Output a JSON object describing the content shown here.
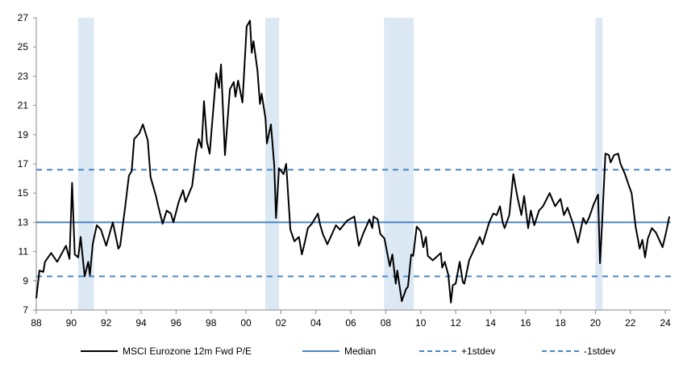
{
  "chart_data": {
    "type": "line",
    "title": "",
    "xlabel": "",
    "ylabel": "",
    "xlim": [
      1988,
      2024.3
    ],
    "ylim": [
      7,
      27
    ],
    "yticks": [
      7,
      9,
      11,
      13,
      15,
      17,
      19,
      21,
      23,
      25,
      27
    ],
    "xticks": [
      1988,
      1990,
      1992,
      1994,
      1996,
      1998,
      2000,
      2002,
      2004,
      2006,
      2008,
      2010,
      2012,
      2014,
      2016,
      2018,
      2020,
      2022,
      2024
    ],
    "xtick_labels": [
      "88",
      "90",
      "92",
      "94",
      "96",
      "98",
      "00",
      "02",
      "04",
      "06",
      "08",
      "10",
      "12",
      "14",
      "16",
      "18",
      "20",
      "22",
      "24"
    ],
    "grid": false,
    "legend_position": "bottom",
    "shaded_periods": [
      [
        1990.4,
        1991.3
      ],
      [
        2001.1,
        2001.9
      ],
      [
        2007.9,
        2009.6
      ],
      [
        2020.0,
        2020.4
      ]
    ],
    "reference_lines": [
      {
        "name": "Median",
        "value": 13.0,
        "style": "solid",
        "color": "#4a86c5"
      },
      {
        "name": "+1stdev",
        "value": 16.6,
        "style": "dashed",
        "color": "#4a86c5"
      },
      {
        "name": "-1stdev",
        "value": 9.3,
        "style": "dashed",
        "color": "#4a86c5"
      }
    ],
    "series": [
      {
        "name": "MSCI Eurozone 12m Fwd P/E",
        "color": "#000000",
        "x": [
          1988.0,
          1988.18,
          1988.4,
          1988.5,
          1988.85,
          1989.2,
          1989.7,
          1989.9,
          1990.05,
          1990.2,
          1990.4,
          1990.54,
          1990.77,
          1990.97,
          1991.07,
          1991.23,
          1991.46,
          1991.7,
          1992.0,
          1992.38,
          1992.7,
          1992.8,
          1993.08,
          1993.3,
          1993.46,
          1993.6,
          1993.9,
          1994.1,
          1994.38,
          1994.54,
          1994.85,
          1995.0,
          1995.23,
          1995.46,
          1995.7,
          1995.85,
          1996.15,
          1996.4,
          1996.54,
          1996.92,
          1997.15,
          1997.3,
          1997.46,
          1997.6,
          1997.77,
          1997.92,
          1998.3,
          1998.46,
          1998.57,
          1998.8,
          1999.08,
          1999.3,
          1999.4,
          1999.55,
          1999.8,
          2000.04,
          2000.23,
          2000.33,
          2000.43,
          2000.66,
          2000.8,
          2000.9,
          2001.12,
          2001.2,
          2001.43,
          2001.62,
          2001.72,
          2001.89,
          2002.15,
          2002.3,
          2002.54,
          2002.77,
          2003.03,
          2003.2,
          2003.38,
          2003.54,
          2003.77,
          2004.12,
          2004.23,
          2004.4,
          2004.66,
          2005.15,
          2005.38,
          2005.77,
          2006.2,
          2006.46,
          2006.7,
          2007.07,
          2007.23,
          2007.3,
          2007.54,
          2007.69,
          2007.92,
          2008.23,
          2008.38,
          2008.57,
          2008.66,
          2008.92,
          2009.15,
          2009.27,
          2009.46,
          2009.57,
          2009.77,
          2010.0,
          2010.15,
          2010.3,
          2010.41,
          2010.69,
          2011.15,
          2011.23,
          2011.38,
          2011.58,
          2011.73,
          2011.84,
          2012.0,
          2012.23,
          2012.41,
          2012.5,
          2012.77,
          2013.0,
          2013.38,
          2013.54,
          2013.77,
          2013.92,
          2014.15,
          2014.35,
          2014.54,
          2014.69,
          2014.8,
          2015.07,
          2015.3,
          2015.54,
          2015.76,
          2015.92,
          2016.15,
          2016.3,
          2016.5,
          2016.77,
          2017.0,
          2017.38,
          2017.69,
          2018.0,
          2018.2,
          2018.4,
          2018.72,
          2019.0,
          2019.3,
          2019.46,
          2019.63,
          2019.92,
          2020.15,
          2020.26,
          2020.38,
          2020.57,
          2020.77,
          2020.87,
          2021.07,
          2021.3,
          2021.44,
          2021.69,
          2021.92,
          2022.07,
          2022.3,
          2022.53,
          2022.69,
          2022.84,
          2023.0,
          2023.23,
          2023.46,
          2023.84,
          2024.04,
          2024.23
        ],
        "values": [
          7.8,
          9.7,
          9.6,
          10.3,
          10.9,
          10.3,
          11.4,
          10.5,
          15.7,
          10.8,
          10.6,
          12.0,
          9.3,
          10.3,
          9.4,
          11.5,
          12.8,
          12.5,
          11.4,
          13.0,
          11.2,
          11.4,
          14.0,
          16.2,
          16.5,
          18.7,
          19.1,
          19.7,
          18.6,
          16.1,
          14.8,
          14.0,
          12.9,
          13.8,
          13.6,
          13.0,
          14.4,
          15.2,
          14.4,
          15.5,
          17.8,
          18.7,
          18.1,
          21.3,
          18.5,
          17.7,
          23.2,
          22.2,
          23.8,
          17.6,
          22.1,
          22.6,
          21.6,
          22.7,
          21.2,
          26.4,
          26.8,
          24.6,
          25.4,
          23.4,
          21.1,
          21.8,
          20.1,
          18.4,
          19.7,
          16.9,
          13.3,
          16.7,
          16.3,
          17.0,
          12.5,
          11.7,
          12.0,
          10.8,
          11.7,
          12.6,
          12.9,
          13.6,
          12.9,
          12.2,
          11.5,
          12.8,
          12.5,
          13.1,
          13.4,
          11.4,
          12.2,
          13.2,
          12.6,
          13.4,
          13.2,
          12.2,
          11.9,
          10.0,
          10.8,
          8.8,
          9.7,
          7.6,
          8.4,
          8.6,
          10.8,
          10.7,
          12.7,
          12.4,
          11.3,
          12.0,
          10.7,
          10.4,
          10.9,
          9.9,
          10.3,
          9.4,
          7.5,
          8.7,
          8.8,
          10.3,
          8.9,
          8.8,
          10.4,
          11.0,
          12.0,
          11.5,
          12.4,
          13.0,
          13.6,
          13.5,
          14.1,
          13.0,
          12.6,
          13.5,
          16.3,
          14.7,
          13.5,
          14.8,
          12.6,
          13.8,
          12.8,
          13.8,
          14.1,
          15.0,
          14.1,
          14.6,
          13.5,
          14.0,
          12.9,
          11.6,
          13.3,
          12.9,
          13.3,
          14.3,
          14.9,
          10.2,
          12.9,
          17.7,
          17.6,
          17.1,
          17.6,
          17.7,
          17.0,
          16.3,
          15.5,
          15.0,
          12.7,
          11.2,
          11.8,
          10.6,
          11.9,
          12.6,
          12.3,
          11.3,
          12.3,
          13.4
        ]
      }
    ],
    "colors": {
      "line": "#000000",
      "reference": "#4a86c5",
      "shade": "#dce8f3"
    },
    "legend": [
      "MSCI Eurozone 12m Fwd P/E",
      "Median",
      "+1stdev",
      "-1stdev"
    ]
  }
}
